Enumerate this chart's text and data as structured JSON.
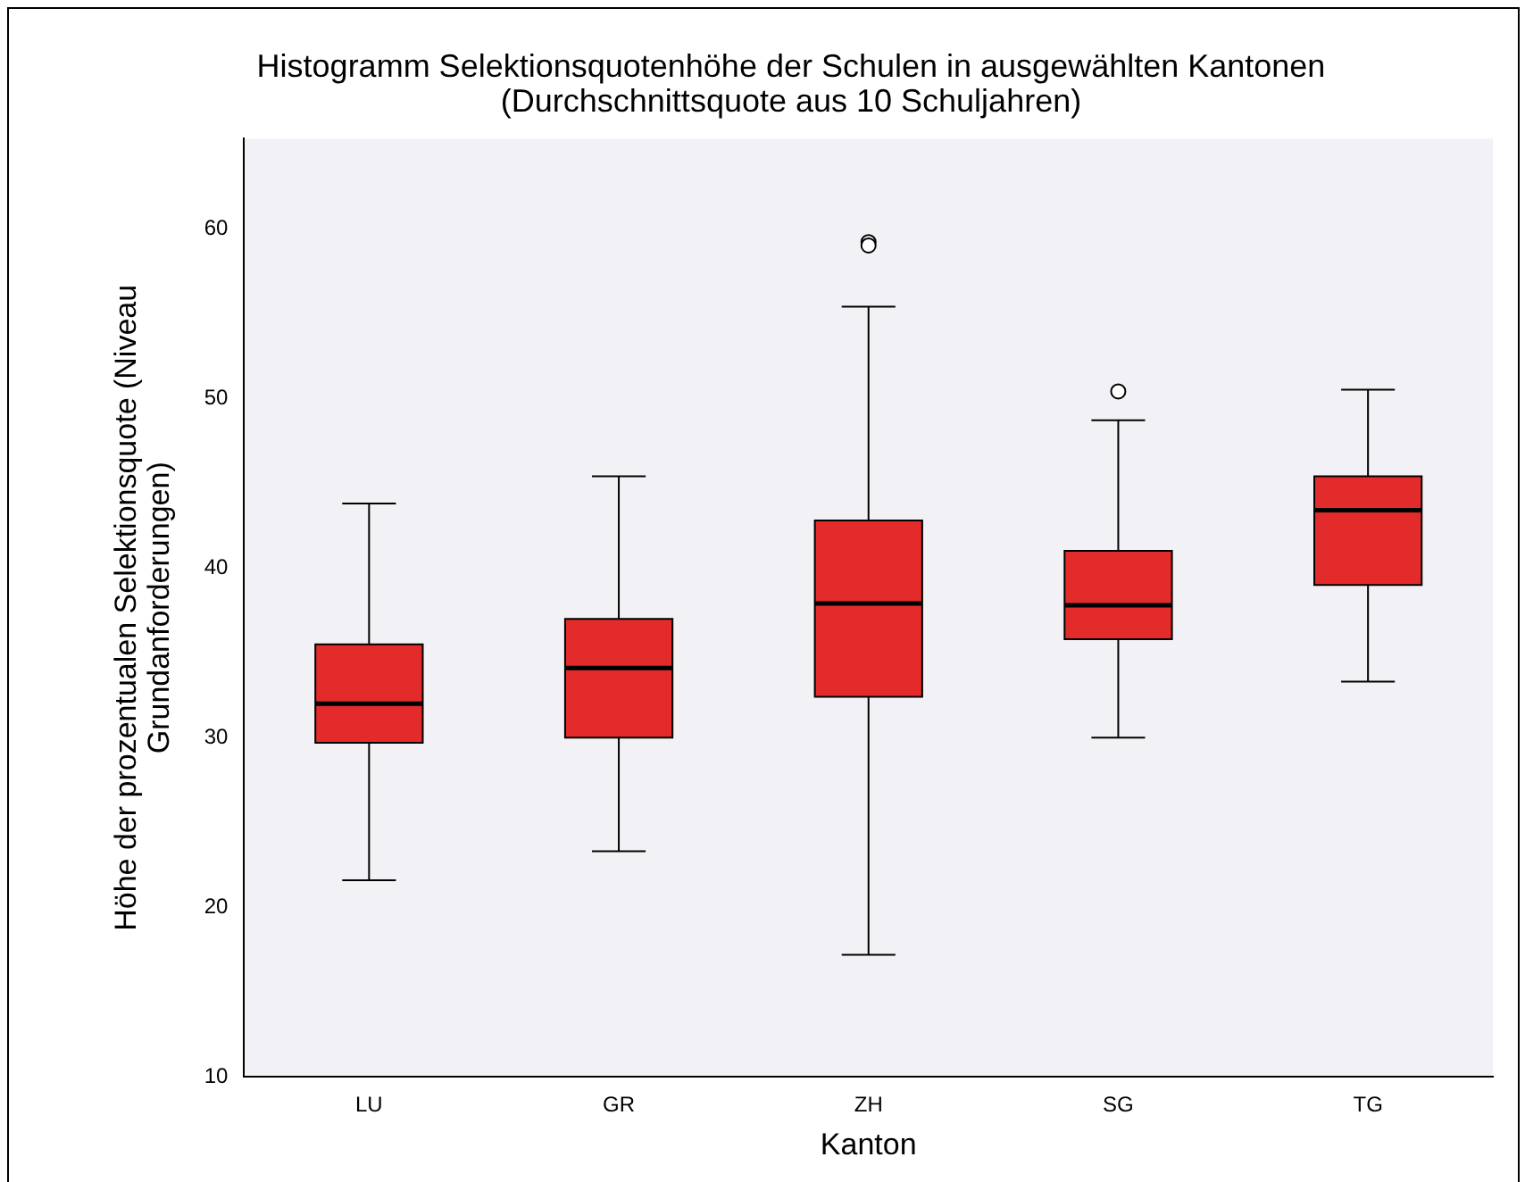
{
  "chart_data": {
    "type": "box",
    "title": "Histogramm Selektionsquotenhöhe der Schulen in ausgewählten Kantonen",
    "subtitle": "(Durchschnittsquote aus 10 Schuljahren)",
    "xlabel": "Kanton",
    "ylabel": "Höhe der prozentualen Selektionsquote (Niveau Grundanforderungen)",
    "categories": [
      "LU",
      "GR",
      "ZH",
      "SG",
      "TG"
    ],
    "color": "#e32b2b",
    "boxes": [
      {
        "low": 21.6,
        "q1": 29.7,
        "median": 32.0,
        "q3": 35.5,
        "high": 43.8
      },
      {
        "low": 23.3,
        "q1": 30.0,
        "median": 34.1,
        "q3": 37.0,
        "high": 45.4
      },
      {
        "low": 17.2,
        "q1": 32.4,
        "median": 37.9,
        "q3": 42.8,
        "high": 55.4,
        "outliers": [
          59.2,
          59.0
        ]
      },
      {
        "low": 30.0,
        "q1": 35.8,
        "median": 37.8,
        "q3": 41.0,
        "high": 48.7,
        "outliers": [
          50.4
        ]
      },
      {
        "low": 33.3,
        "q1": 39.0,
        "median": 43.4,
        "q3": 45.4,
        "high": 50.5
      }
    ],
    "ylim": [
      10,
      65.3
    ],
    "yticks": [
      10,
      20,
      30,
      40,
      50,
      60
    ],
    "grid": false,
    "legend": false
  }
}
